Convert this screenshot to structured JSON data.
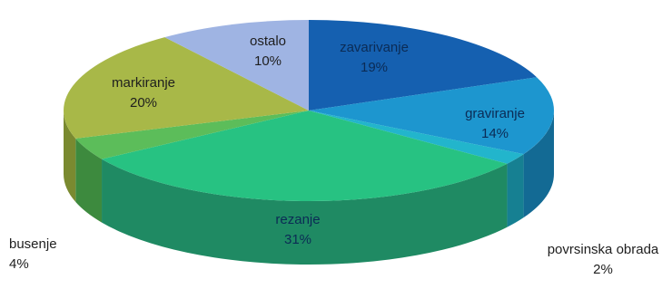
{
  "chart_data": {
    "type": "pie",
    "style": "3d",
    "title": "",
    "slices": [
      {
        "label": "zavarivanje",
        "value": 19,
        "value_label": "19%",
        "color": "#1560b0",
        "side_color": "#0d4378"
      },
      {
        "label": "graviranje",
        "value": 14,
        "value_label": "14%",
        "color": "#1d96cf",
        "side_color": "#136a94"
      },
      {
        "label": "povrsinska obrada",
        "value": 2,
        "value_label": "2%",
        "color": "#22b5cc",
        "side_color": "#168092"
      },
      {
        "label": "rezanje",
        "value": 31,
        "value_label": "31%",
        "color": "#27c282",
        "side_color": "#1f8a63"
      },
      {
        "label": "busenje",
        "value": 4,
        "value_label": "4%",
        "color": "#5cbd5a",
        "side_color": "#3d8a3e"
      },
      {
        "label": "markiranje",
        "value": 20,
        "value_label": "20%",
        "color": "#a8b848",
        "side_color": "#7a8a30"
      },
      {
        "label": "ostalo",
        "value": 10,
        "value_label": "10%",
        "color": "#9fb4e3",
        "side_color": "#7388b8"
      }
    ]
  }
}
